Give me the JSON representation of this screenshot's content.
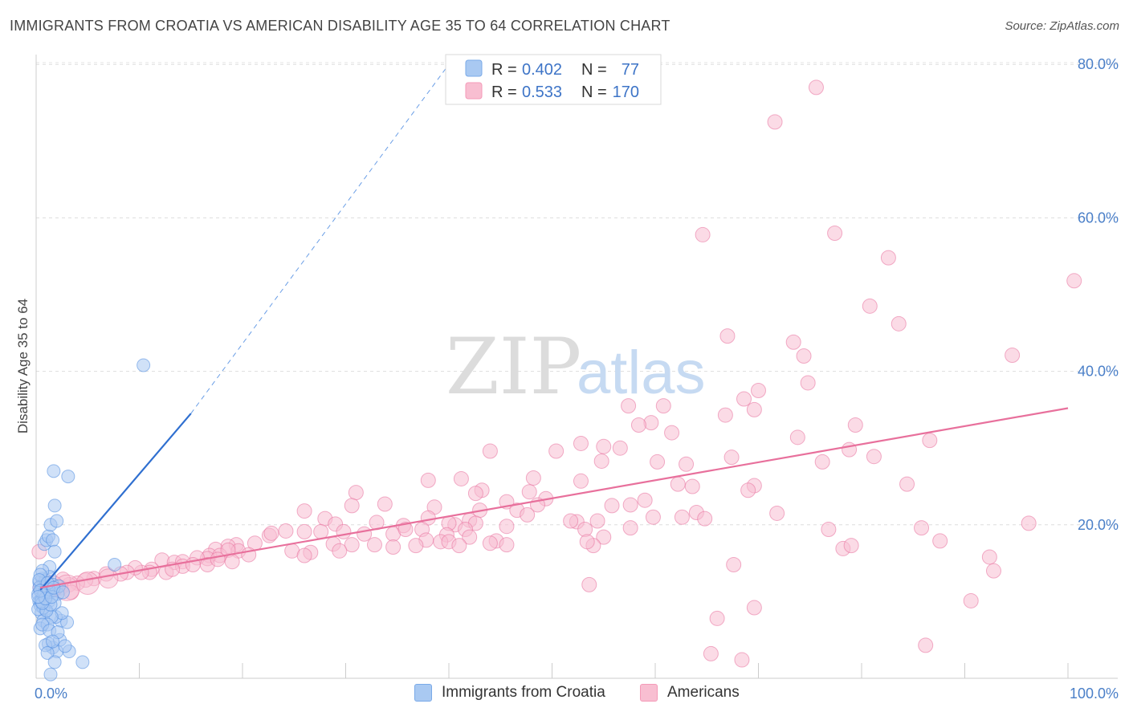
{
  "title": "IMMIGRANTS FROM CROATIA VS AMERICAN DISABILITY AGE 35 TO 64 CORRELATION CHART",
  "source": "Source: ZipAtlas.com",
  "watermark": {
    "zip": "ZIP",
    "atlas": "atlas"
  },
  "legend": {
    "r_label": "R =",
    "n_label": "N =",
    "entries": [
      {
        "r": "0.402",
        "n": "77",
        "color": "#7aaae8"
      },
      {
        "r": "0.533",
        "n": "170",
        "color": "#f49ab8"
      }
    ]
  },
  "bottom_legend": [
    {
      "label": "Immigrants from Croatia",
      "color": "#a9c9f2"
    },
    {
      "label": "Americans",
      "color": "#f8bed1"
    }
  ],
  "chart_data": {
    "type": "scatter",
    "title": "IMMIGRANTS FROM CROATIA VS AMERICAN DISABILITY AGE 35 TO 64 CORRELATION CHART",
    "xlabel": "",
    "ylabel": "Disability Age 35 to 64",
    "xlim": [
      0,
      100
    ],
    "ylim": [
      0,
      82
    ],
    "x_tick_labels": [
      {
        "value": 0,
        "label": "0.0%"
      },
      {
        "value": 100,
        "label": "100.0%"
      }
    ],
    "y_tick_labels": [
      {
        "value": 20,
        "label": "20.0%"
      },
      {
        "value": 40,
        "label": "40.0%"
      },
      {
        "value": 60,
        "label": "60.0%"
      },
      {
        "value": 80,
        "label": "80.0%"
      }
    ],
    "grid": "horizontal dashed",
    "legend_position": "top-center",
    "series": [
      {
        "name": "Immigrants from Croatia",
        "color": "#4f8ce0",
        "fill": "#a9c9f2",
        "trend": {
          "x": [
            0.4,
            15
          ],
          "y": [
            11.5,
            34.5
          ],
          "extended_to": [
            40,
            80
          ]
        },
        "points": [
          [
            0.2,
            11
          ],
          [
            0.3,
            10
          ],
          [
            0.4,
            9.5
          ],
          [
            0.5,
            12
          ],
          [
            0.3,
            12.5
          ],
          [
            0.6,
            11.5
          ],
          [
            0.8,
            10.5
          ],
          [
            1.0,
            11
          ],
          [
            0.5,
            8.5
          ],
          [
            0.7,
            7.5
          ],
          [
            0.4,
            6.5
          ],
          [
            0.9,
            9
          ],
          [
            1.2,
            10
          ],
          [
            1.5,
            11.5
          ],
          [
            0.6,
            13
          ],
          [
            1.1,
            12
          ],
          [
            1.3,
            14.5
          ],
          [
            0.8,
            17.5
          ],
          [
            1.0,
            18
          ],
          [
            1.2,
            18.5
          ],
          [
            1.6,
            18
          ],
          [
            1.8,
            16.5
          ],
          [
            1.4,
            20
          ],
          [
            2.0,
            20.5
          ],
          [
            1.8,
            22.5
          ],
          [
            1.7,
            27
          ],
          [
            3.1,
            26.3
          ],
          [
            10.4,
            40.8
          ],
          [
            7.6,
            14.8
          ],
          [
            1.6,
            4
          ],
          [
            1.2,
            4.5
          ],
          [
            2.3,
            5
          ],
          [
            0.9,
            4.3
          ],
          [
            2.0,
            3.5
          ],
          [
            3.2,
            3.5
          ],
          [
            1.1,
            3.3
          ],
          [
            1.8,
            2.1
          ],
          [
            4.5,
            2.1
          ],
          [
            1.4,
            0.5
          ],
          [
            2.4,
            7.5
          ],
          [
            3.0,
            7.3
          ],
          [
            1.9,
            8
          ],
          [
            2.5,
            8.5
          ],
          [
            1.5,
            8
          ],
          [
            0.7,
            9.2
          ],
          [
            1.1,
            7
          ],
          [
            0.5,
            10.2
          ],
          [
            0.3,
            11.8
          ],
          [
            0.9,
            12.8
          ],
          [
            1.3,
            13.2
          ],
          [
            0.6,
            14
          ],
          [
            1.6,
            12.2
          ],
          [
            2.1,
            11
          ],
          [
            1.8,
            9.8
          ],
          [
            0.2,
            9
          ],
          [
            0.4,
            13.5
          ],
          [
            0.7,
            10.8
          ],
          [
            1.0,
            8.8
          ],
          [
            1.4,
            9.6
          ],
          [
            2.2,
            12
          ],
          [
            0.3,
            12.8
          ],
          [
            0.5,
            10
          ],
          [
            0.8,
            11.2
          ],
          [
            1.2,
            11.6
          ],
          [
            0.6,
            9.8
          ],
          [
            0.9,
            10.4
          ],
          [
            1.1,
            12.4
          ],
          [
            1.5,
            10.6
          ],
          [
            0.4,
            11.4
          ],
          [
            0.2,
            10.6
          ],
          [
            1.7,
            11.8
          ],
          [
            2.6,
            11.2
          ],
          [
            0.6,
            7
          ],
          [
            1.3,
            6.2
          ],
          [
            2.1,
            6
          ],
          [
            1.6,
            4.8
          ],
          [
            2.8,
            4.2
          ]
        ]
      },
      {
        "name": "Americans",
        "color": "#e8709c",
        "fill": "#f8bed1",
        "trend": {
          "x": [
            0.4,
            100
          ],
          "y": [
            11.8,
            35.2
          ]
        },
        "points": [
          [
            75.6,
            77
          ],
          [
            71.6,
            72.5
          ],
          [
            64.6,
            57.8
          ],
          [
            77.4,
            58
          ],
          [
            82.6,
            54.8
          ],
          [
            100.6,
            51.8
          ],
          [
            80.8,
            48.5
          ],
          [
            83.6,
            46.2
          ],
          [
            67.0,
            44.6
          ],
          [
            73.4,
            43.8
          ],
          [
            74.4,
            42
          ],
          [
            94.6,
            42.1
          ],
          [
            68.6,
            36.4
          ],
          [
            70.0,
            37.5
          ],
          [
            74.8,
            38.5
          ],
          [
            57.4,
            35.5
          ],
          [
            60.8,
            35.5
          ],
          [
            59.6,
            33.3
          ],
          [
            58.4,
            33
          ],
          [
            61.6,
            32
          ],
          [
            69.6,
            35
          ],
          [
            66.8,
            34.3
          ],
          [
            73.8,
            31.4
          ],
          [
            79.4,
            33
          ],
          [
            76.2,
            28.2
          ],
          [
            78.8,
            29.8
          ],
          [
            86.6,
            31
          ],
          [
            52.8,
            30.6
          ],
          [
            55.0,
            30.2
          ],
          [
            56.6,
            30
          ],
          [
            44.0,
            29.6
          ],
          [
            50.4,
            29.6
          ],
          [
            54.8,
            28.3
          ],
          [
            60.2,
            28.2
          ],
          [
            63.0,
            27.9
          ],
          [
            67.4,
            28.8
          ],
          [
            81.2,
            28.9
          ],
          [
            84.4,
            25.3
          ],
          [
            62.2,
            25.3
          ],
          [
            63.6,
            25
          ],
          [
            69.6,
            25.1
          ],
          [
            69.0,
            24.5
          ],
          [
            52.8,
            25.7
          ],
          [
            48.2,
            26.1
          ],
          [
            41.2,
            26
          ],
          [
            31.0,
            24.2
          ],
          [
            38.0,
            25.8
          ],
          [
            43.2,
            24.5
          ],
          [
            42.6,
            24.1
          ],
          [
            47.8,
            24.3
          ],
          [
            49.4,
            23.4
          ],
          [
            45.6,
            23
          ],
          [
            48.6,
            22.6
          ],
          [
            57.6,
            22.6
          ],
          [
            59.0,
            23.2
          ],
          [
            55.8,
            22.5
          ],
          [
            43.0,
            21.9
          ],
          [
            46.6,
            21.9
          ],
          [
            47.6,
            21.3
          ],
          [
            33.8,
            22.7
          ],
          [
            30.6,
            22.5
          ],
          [
            38.6,
            22.3
          ],
          [
            38.0,
            20.9
          ],
          [
            42.0,
            20.6
          ],
          [
            42.6,
            20.2
          ],
          [
            52.4,
            20.4
          ],
          [
            51.8,
            20.5
          ],
          [
            54.4,
            20.5
          ],
          [
            64.0,
            21.6
          ],
          [
            59.8,
            21
          ],
          [
            62.6,
            21
          ],
          [
            64.8,
            20.8
          ],
          [
            71.8,
            21.5
          ],
          [
            40.6,
            20
          ],
          [
            40.0,
            20.2
          ],
          [
            26.0,
            21.8
          ],
          [
            28.0,
            20.8
          ],
          [
            29.0,
            20.1
          ],
          [
            33.0,
            20.3
          ],
          [
            35.6,
            19.9
          ],
          [
            37.4,
            19.4
          ],
          [
            41.6,
            19.4
          ],
          [
            42.0,
            18.4
          ],
          [
            45.6,
            19.8
          ],
          [
            53.2,
            19.4
          ],
          [
            55.0,
            18.4
          ],
          [
            57.6,
            19.6
          ],
          [
            76.8,
            19.4
          ],
          [
            85.8,
            19.6
          ],
          [
            96.2,
            20.2
          ],
          [
            24.2,
            19.2
          ],
          [
            27.6,
            19.1
          ],
          [
            29.8,
            19.1
          ],
          [
            31.8,
            18.8
          ],
          [
            34.6,
            18.8
          ],
          [
            35.8,
            19.4
          ],
          [
            37.8,
            18
          ],
          [
            39.8,
            18.7
          ],
          [
            44.6,
            17.9
          ],
          [
            39.2,
            17.8
          ],
          [
            32.8,
            17.4
          ],
          [
            22.6,
            18.6
          ],
          [
            22.8,
            18.9
          ],
          [
            26.0,
            19.1
          ],
          [
            28.8,
            17.5
          ],
          [
            30.6,
            17.4
          ],
          [
            34.6,
            17.1
          ],
          [
            36.8,
            17.3
          ],
          [
            40.0,
            17.8
          ],
          [
            44.0,
            17.6
          ],
          [
            54.0,
            17.3
          ],
          [
            45.6,
            17.4
          ],
          [
            41.0,
            17.3
          ],
          [
            78.2,
            16.9
          ],
          [
            79.0,
            17.3
          ],
          [
            87.6,
            17.9
          ],
          [
            21.2,
            17.6
          ],
          [
            19.4,
            17.4
          ],
          [
            18.6,
            17.2
          ],
          [
            19.6,
            16.6
          ],
          [
            20.6,
            16.1
          ],
          [
            24.8,
            16.6
          ],
          [
            26.6,
            16.4
          ],
          [
            26.0,
            16
          ],
          [
            29.4,
            16.6
          ],
          [
            17.4,
            16.8
          ],
          [
            16.8,
            16
          ],
          [
            17.8,
            16
          ],
          [
            16.6,
            15.6
          ],
          [
            18.6,
            16.7
          ],
          [
            12.2,
            15.4
          ],
          [
            13.4,
            15.1
          ],
          [
            14.2,
            15.2
          ],
          [
            15.6,
            15.7
          ],
          [
            16.6,
            14.8
          ],
          [
            17.6,
            15.5
          ],
          [
            19.0,
            15.2
          ],
          [
            14.2,
            14.6
          ],
          [
            15.2,
            14.8
          ],
          [
            12.6,
            13.8
          ],
          [
            13.2,
            14.2
          ],
          [
            11.2,
            14.2
          ],
          [
            11.0,
            13.8
          ],
          [
            10.2,
            13.8
          ],
          [
            9.6,
            14.4
          ],
          [
            8.8,
            13.8
          ],
          [
            8.2,
            13.6
          ],
          [
            6.8,
            13.6
          ],
          [
            5.6,
            13
          ],
          [
            4.8,
            12.8
          ],
          [
            4.0,
            12.4
          ],
          [
            3.2,
            12.2
          ],
          [
            2.4,
            11.8
          ],
          [
            1.8,
            11.6
          ],
          [
            1.4,
            11.9
          ],
          [
            0.8,
            12.2
          ],
          [
            0.4,
            11.8
          ],
          [
            1.0,
            12.6
          ],
          [
            2.6,
            12.9
          ],
          [
            3.4,
            11.2
          ],
          [
            0.3,
            16.5
          ],
          [
            53.4,
            17.8
          ],
          [
            92.4,
            15.8
          ],
          [
            92.8,
            14
          ],
          [
            67.6,
            14.8
          ],
          [
            53.6,
            12.2
          ],
          [
            90.6,
            10.1
          ],
          [
            69.6,
            9.2
          ],
          [
            66.0,
            7.8
          ],
          [
            86.2,
            4.3
          ],
          [
            65.4,
            3.2
          ],
          [
            68.4,
            2.4
          ]
        ]
      }
    ]
  }
}
